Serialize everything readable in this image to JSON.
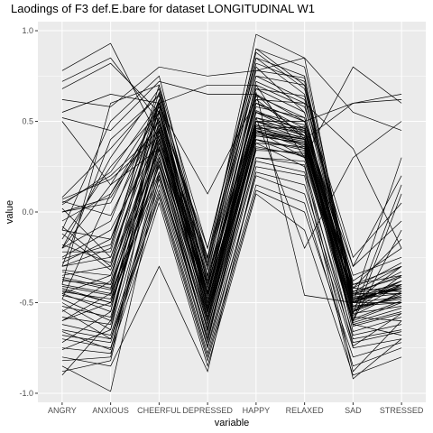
{
  "chart_data": {
    "type": "line",
    "title": "Laodings of F3 def.E.bare for dataset LONGITUDINAL W1",
    "xlabel": "variable",
    "ylabel": "value",
    "categories": [
      "ANGRY",
      "ANXIOUS",
      "CHEERFUL",
      "DEPRESSED",
      "HAPPY",
      "RELAXED",
      "SAD",
      "STRESSED"
    ],
    "ylim": [
      -1.05,
      1.05
    ],
    "yticks": [
      -1.0,
      -0.5,
      0.0,
      0.5,
      1.0
    ],
    "ytick_labels": [
      "-1.0",
      "-0.5",
      "0.0",
      "0.5",
      "1.0"
    ],
    "grid": true,
    "background": "#ebebeb",
    "grid_color": "#ffffff",
    "line_color": "#000000",
    "series": [
      {
        "values": [
          0.78,
          0.93,
          0.4,
          -0.25,
          0.98,
          0.85,
          -0.5,
          -0.4
        ]
      },
      {
        "values": [
          0.72,
          0.85,
          0.5,
          -0.3,
          0.9,
          0.8,
          -0.45,
          -0.35
        ]
      },
      {
        "values": [
          0.68,
          0.82,
          0.55,
          -0.2,
          0.85,
          0.75,
          -0.55,
          -0.45
        ]
      },
      {
        "values": [
          0.55,
          0.65,
          0.6,
          0.7,
          0.7,
          0.3,
          0.8,
          0.6
        ]
      },
      {
        "values": [
          0.52,
          0.45,
          0.72,
          0.65,
          0.65,
          0.4,
          0.6,
          0.65
        ]
      },
      {
        "values": [
          0.62,
          0.58,
          0.8,
          0.75,
          0.78,
          0.85,
          0.55,
          0.45
        ]
      },
      {
        "values": [
          0.08,
          0.35,
          0.65,
          -0.4,
          0.55,
          0.45,
          -0.3,
          0.2
        ]
      },
      {
        "values": [
          0.05,
          0.2,
          0.45,
          -0.55,
          0.45,
          0.35,
          -0.6,
          -0.1
        ]
      },
      {
        "values": [
          -0.05,
          0.1,
          0.5,
          -0.45,
          0.6,
          0.5,
          -0.5,
          -0.3
        ]
      },
      {
        "values": [
          -0.15,
          0.25,
          0.55,
          -0.5,
          0.5,
          0.4,
          -0.55,
          -0.4
        ]
      },
      {
        "values": [
          -0.2,
          0.15,
          0.35,
          -0.6,
          0.42,
          0.38,
          -0.48,
          -0.42
        ]
      },
      {
        "values": [
          -0.25,
          -0.1,
          0.4,
          -0.35,
          0.48,
          0.36,
          -0.45,
          -0.45
        ]
      },
      {
        "values": [
          -0.3,
          -0.2,
          0.7,
          -0.4,
          0.8,
          0.55,
          -0.5,
          -0.5
        ]
      },
      {
        "values": [
          -0.35,
          -0.3,
          0.6,
          -0.45,
          0.62,
          0.42,
          -0.52,
          -0.38
        ]
      },
      {
        "values": [
          -0.38,
          -0.4,
          0.3,
          -0.5,
          0.4,
          0.3,
          -0.5,
          -0.4
        ]
      },
      {
        "values": [
          -0.4,
          -0.45,
          0.25,
          -0.65,
          0.35,
          0.32,
          -0.55,
          -0.35
        ]
      },
      {
        "values": [
          -0.42,
          -0.5,
          0.2,
          -0.7,
          0.3,
          0.28,
          -0.6,
          -0.5
        ]
      },
      {
        "values": [
          -0.45,
          -0.55,
          0.45,
          -0.55,
          0.5,
          0.45,
          -0.48,
          -0.45
        ]
      },
      {
        "values": [
          -0.48,
          -0.6,
          0.38,
          -0.62,
          0.45,
          0.4,
          -0.58,
          -0.6
        ]
      },
      {
        "values": [
          -0.5,
          -0.65,
          0.3,
          -0.58,
          0.4,
          0.35,
          -0.7,
          -0.65
        ]
      },
      {
        "values": [
          -0.65,
          -0.7,
          0.15,
          -0.75,
          0.2,
          0.1,
          -0.75,
          -0.7
        ]
      },
      {
        "values": [
          -0.7,
          -0.75,
          0.1,
          -0.8,
          0.15,
          0.05,
          -0.85,
          -0.75
        ]
      },
      {
        "values": [
          -0.75,
          -0.78,
          0.05,
          -0.85,
          0.1,
          -0.1,
          -0.9,
          -0.8
        ]
      },
      {
        "values": [
          -0.8,
          -0.85,
          -0.3,
          -0.88,
          0.25,
          0.2,
          -0.92,
          -0.7
        ]
      },
      {
        "values": [
          -0.85,
          -0.99,
          0.2,
          -0.7,
          0.38,
          0.25,
          -0.88,
          -0.6
        ]
      },
      {
        "values": [
          -0.9,
          -0.6,
          0.35,
          -0.45,
          0.45,
          0.3,
          -0.62,
          -0.55
        ]
      },
      {
        "values": [
          -0.6,
          -0.45,
          0.5,
          -0.5,
          0.55,
          0.42,
          -0.48,
          -0.42
        ]
      },
      {
        "values": [
          -0.55,
          -0.38,
          0.62,
          -0.6,
          0.65,
          0.5,
          -0.45,
          -0.4
        ]
      },
      {
        "values": [
          -0.1,
          0.5,
          0.75,
          -0.3,
          0.9,
          0.7,
          -0.5,
          -0.4
        ]
      },
      {
        "values": [
          -0.2,
          0.3,
          0.68,
          -0.35,
          0.85,
          0.65,
          -0.42,
          -0.44
        ]
      },
      {
        "values": [
          0.0,
          0.05,
          0.58,
          -0.48,
          0.72,
          0.6,
          -0.46,
          -0.42
        ]
      },
      {
        "values": [
          -0.28,
          -0.15,
          0.48,
          -0.52,
          0.55,
          0.48,
          -0.5,
          -0.38
        ]
      },
      {
        "values": [
          -0.32,
          -0.35,
          0.42,
          -0.55,
          0.48,
          0.44,
          -0.47,
          -0.43
        ]
      },
      {
        "values": [
          -0.36,
          -0.42,
          0.36,
          -0.6,
          0.44,
          0.4,
          -0.49,
          -0.41
        ]
      },
      {
        "values": [
          -0.44,
          -0.48,
          0.32,
          -0.66,
          0.42,
          0.38,
          -0.53,
          -0.47
        ]
      },
      {
        "values": [
          -0.46,
          -0.52,
          0.28,
          -0.72,
          0.38,
          0.36,
          -0.56,
          -0.52
        ]
      },
      {
        "values": [
          0.06,
          -0.02,
          0.52,
          -0.42,
          0.6,
          0.46,
          -0.44,
          -0.36
        ]
      },
      {
        "values": [
          0.02,
          -0.25,
          0.46,
          -0.46,
          0.52,
          0.42,
          -0.4,
          -0.3
        ]
      },
      {
        "values": [
          -0.08,
          -0.3,
          0.4,
          -0.4,
          0.5,
          0.5,
          -0.35,
          -0.25
        ]
      },
      {
        "values": [
          -0.12,
          -0.32,
          0.34,
          -0.44,
          0.46,
          0.47,
          -0.38,
          -0.2
        ]
      },
      {
        "values": [
          -0.18,
          -0.28,
          0.56,
          -0.38,
          0.58,
          0.52,
          -0.42,
          -0.15
        ]
      },
      {
        "values": [
          -0.22,
          -0.22,
          0.62,
          -0.32,
          0.7,
          0.58,
          -0.3,
          -0.05
        ]
      },
      {
        "values": [
          -0.26,
          -0.18,
          0.66,
          -0.28,
          0.75,
          0.62,
          -0.25,
          0.05
        ]
      },
      {
        "values": [
          -0.33,
          -0.4,
          0.44,
          -0.5,
          0.46,
          0.4,
          -0.52,
          -0.48
        ]
      },
      {
        "values": [
          -0.37,
          -0.43,
          0.38,
          -0.54,
          0.43,
          0.37,
          -0.54,
          -0.46
        ]
      },
      {
        "values": [
          -0.41,
          -0.46,
          0.22,
          -0.68,
          0.34,
          0.33,
          -0.57,
          -0.44
        ]
      },
      {
        "values": [
          -0.43,
          -0.5,
          0.26,
          -0.64,
          0.36,
          0.31,
          -0.59,
          -0.49
        ]
      },
      {
        "values": [
          -0.52,
          -0.58,
          0.35,
          -0.56,
          0.44,
          0.38,
          -0.61,
          -0.53
        ]
      },
      {
        "values": [
          -0.58,
          -0.62,
          0.4,
          -0.53,
          0.47,
          0.41,
          -0.63,
          -0.56
        ]
      },
      {
        "values": [
          -0.62,
          -0.68,
          0.18,
          -0.74,
          0.28,
          0.22,
          -0.68,
          -0.62
        ]
      },
      {
        "values": [
          -0.68,
          -0.72,
          0.12,
          -0.78,
          0.22,
          0.15,
          -0.72,
          -0.66
        ]
      },
      {
        "values": [
          -0.72,
          -0.55,
          0.6,
          -0.42,
          0.68,
          0.55,
          -0.52,
          -0.5
        ]
      },
      {
        "values": [
          -0.76,
          -0.65,
          0.55,
          -0.46,
          0.64,
          0.52,
          -0.5,
          -0.47
        ]
      },
      {
        "values": [
          -0.82,
          -0.8,
          0.45,
          -0.58,
          0.52,
          0.46,
          -0.66,
          -0.58
        ]
      },
      {
        "values": [
          0.5,
          0.15,
          0.58,
          0.1,
          0.62,
          0.6,
          0.35,
          -0.2
        ]
      },
      {
        "values": [
          -0.4,
          0.6,
          0.7,
          -0.2,
          0.88,
          0.68,
          -0.4,
          -0.35
        ]
      },
      {
        "values": [
          -0.3,
          0.4,
          0.64,
          -0.25,
          0.82,
          0.72,
          -0.48,
          -0.38
        ]
      },
      {
        "values": [
          -0.48,
          0.1,
          0.55,
          -0.38,
          0.68,
          0.64,
          -0.46,
          -0.33
        ]
      },
      {
        "values": [
          -0.2,
          -0.05,
          0.62,
          -0.3,
          0.75,
          0.7,
          -0.44,
          -0.3
        ]
      },
      {
        "values": [
          0.04,
          0.22,
          0.6,
          -0.26,
          0.78,
          0.74,
          -0.42,
          -0.28
        ]
      },
      {
        "values": [
          -0.54,
          -0.7,
          0.08,
          -0.82,
          0.12,
          0.0,
          -0.8,
          -0.72
        ]
      },
      {
        "values": [
          -0.88,
          -0.82,
          0.28,
          -0.62,
          0.4,
          0.34,
          -0.62,
          -0.68
        ]
      },
      {
        "values": [
          -0.66,
          -0.76,
          0.22,
          -0.7,
          0.3,
          0.26,
          -0.74,
          -0.56
        ]
      },
      {
        "values": [
          -0.6,
          -0.5,
          0.48,
          -0.48,
          0.56,
          0.44,
          -0.5,
          -0.42
        ]
      },
      {
        "values": [
          0.0,
          0.08,
          0.5,
          -0.52,
          0.5,
          0.42,
          -0.56,
          0.15
        ]
      },
      {
        "values": [
          0.07,
          0.18,
          0.42,
          -0.58,
          0.44,
          0.39,
          -0.6,
          0.1
        ]
      },
      {
        "values": [
          -0.3,
          -0.25,
          0.52,
          -0.44,
          0.6,
          0.5,
          0.6,
          0.62
        ]
      },
      {
        "values": [
          -0.45,
          -0.35,
          0.46,
          -0.5,
          0.52,
          -0.2,
          0.3,
          0.5
        ]
      },
      {
        "values": [
          -0.1,
          -0.15,
          0.56,
          -0.36,
          0.66,
          -0.46,
          -0.5,
          0.3
        ]
      }
    ]
  }
}
